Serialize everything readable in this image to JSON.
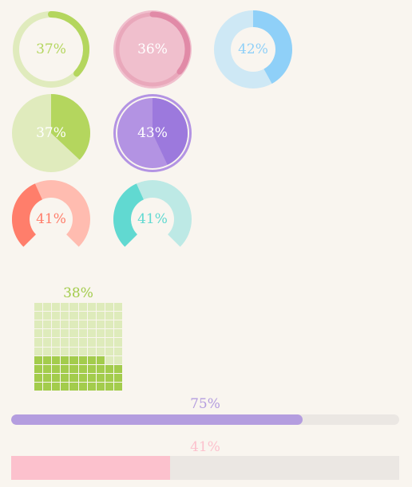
{
  "colors": {
    "green": "#b4d65e",
    "green_light": "#e0ebbd",
    "pink": "#e18aa7",
    "pink_light": "#f0bfcd",
    "blue": "#8fd0f8",
    "blue_light": "#cee8f5",
    "purple": "#9c79dd",
    "purple_light": "#b393e3",
    "salmon": "#ff7e6b",
    "salmon_light": "#ffbcb0",
    "teal": "#61d9d1",
    "teal_light": "#bde9e5",
    "waffle_on": "#a3cc4c",
    "waffle_off": "#deebbb",
    "bar1_fill": "#b49ddf",
    "bar1_track": "#ebe7e3",
    "bar2_fill": "#fcc1cd",
    "bar2_track": "#ebe7e3"
  },
  "widgets": {
    "ring1": {
      "value": 37,
      "label": "37%"
    },
    "ring2": {
      "value": 36,
      "label": "36%"
    },
    "donut": {
      "value": 42,
      "label": "42%"
    },
    "pie1": {
      "value": 37,
      "label": "37%"
    },
    "pie2": {
      "value": 43,
      "label": "43%"
    },
    "arc1": {
      "value": 41,
      "label": "41%"
    },
    "arc2": {
      "value": 41,
      "label": "41%"
    },
    "waffle": {
      "value": 38,
      "label": "38%"
    },
    "bar1": {
      "value": 75,
      "label": "75%"
    },
    "bar2": {
      "value": 41,
      "label": "41%"
    }
  }
}
